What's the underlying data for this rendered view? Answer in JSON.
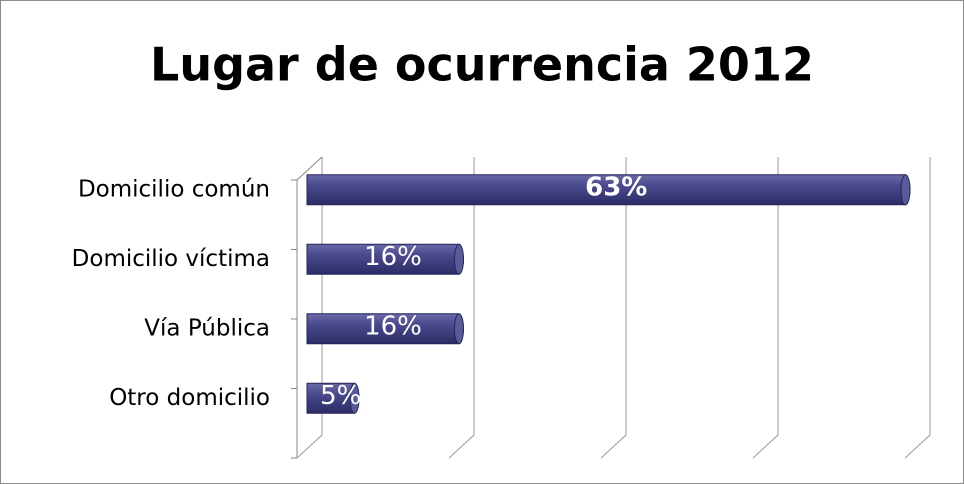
{
  "chart_data": {
    "type": "bar",
    "orientation": "horizontal",
    "title": "Lugar de ocurrencia 2012",
    "categories": [
      "Domicilio común",
      "Domicilio víctima",
      "Vía Pública",
      "Otro domicilio"
    ],
    "values": [
      63,
      16,
      16,
      5
    ],
    "value_labels": [
      "63%",
      "16%",
      "16%",
      "5%"
    ],
    "color": "#3c3c80",
    "xlim": [
      0,
      64
    ],
    "xticks": [
      0,
      16,
      32,
      48,
      64
    ],
    "grid": true
  }
}
